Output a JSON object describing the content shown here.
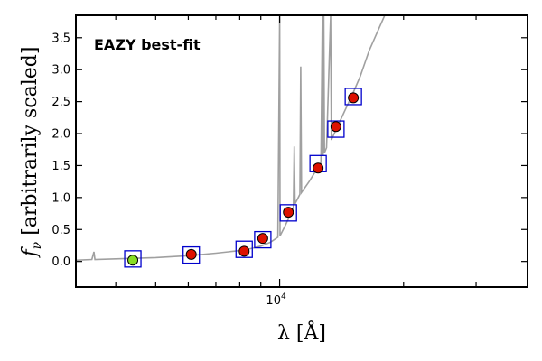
{
  "chart_data": {
    "type": "scatter",
    "title": "",
    "annotation": "EAZY best-fit",
    "annotation_color": "#ff0000",
    "xlabel": "λ [Å]",
    "ylabel_prefix": "f",
    "ylabel_subscript": "ν",
    "ylabel_suffix": " [arbitrarily scaled]",
    "x_scale": "log",
    "xlim": [
      3200,
      40000
    ],
    "ylim": [
      -0.4,
      3.85
    ],
    "x_ticks": [
      {
        "value": 10000,
        "base": "10",
        "exponent": "4"
      }
    ],
    "y_ticks": [
      {
        "value": 0.0,
        "label": "0.0"
      },
      {
        "value": 0.5,
        "label": "0.5"
      },
      {
        "value": 1.0,
        "label": "1.0"
      },
      {
        "value": 1.5,
        "label": "1.5"
      },
      {
        "value": 2.0,
        "label": "2.0"
      },
      {
        "value": 2.5,
        "label": "2.5"
      },
      {
        "value": 3.0,
        "label": "3.0"
      },
      {
        "value": 3.5,
        "label": "3.5"
      }
    ],
    "grid": false,
    "colors": {
      "model": "#a0a0a0",
      "model_flux_box": "#0000cc",
      "observed": "#dd1100",
      "observed_highlight": "#88dd22",
      "marker_edge": "#000000"
    },
    "model_fluxes": [
      {
        "x": 4400,
        "y": 0.04
      },
      {
        "x": 6100,
        "y": 0.1
      },
      {
        "x": 8200,
        "y": 0.19
      },
      {
        "x": 9100,
        "y": 0.34
      },
      {
        "x": 10500,
        "y": 0.76
      },
      {
        "x": 12400,
        "y": 1.53
      },
      {
        "x": 13700,
        "y": 2.07
      },
      {
        "x": 15100,
        "y": 2.58
      }
    ],
    "observed": [
      {
        "x": 4400,
        "y": 0.02,
        "highlight": true
      },
      {
        "x": 6100,
        "y": 0.11,
        "highlight": false
      },
      {
        "x": 8200,
        "y": 0.16,
        "highlight": false
      },
      {
        "x": 9100,
        "y": 0.36,
        "highlight": false
      },
      {
        "x": 10500,
        "y": 0.77,
        "highlight": false
      },
      {
        "x": 12400,
        "y": 1.46,
        "highlight": false
      },
      {
        "x": 13700,
        "y": 2.11,
        "highlight": false
      },
      {
        "x": 15100,
        "y": 2.56,
        "highlight": false
      }
    ],
    "model_spectrum": [
      [
        3200,
        0.02
      ],
      [
        3500,
        0.03
      ],
      [
        3540,
        0.15
      ],
      [
        3560,
        0.03
      ],
      [
        4000,
        0.04
      ],
      [
        5000,
        0.06
      ],
      [
        6000,
        0.09
      ],
      [
        7000,
        0.13
      ],
      [
        8000,
        0.17
      ],
      [
        8500,
        0.2
      ],
      [
        9000,
        0.24
      ],
      [
        9500,
        0.3
      ],
      [
        9900,
        0.38
      ],
      [
        10000,
        3.85
      ],
      [
        10020,
        0.4
      ],
      [
        10300,
        0.55
      ],
      [
        10700,
        0.78
      ],
      [
        10800,
        0.85
      ],
      [
        10850,
        1.8
      ],
      [
        10900,
        0.9
      ],
      [
        11200,
        1.05
      ],
      [
        11250,
        3.05
      ],
      [
        11300,
        1.08
      ],
      [
        11800,
        1.25
      ],
      [
        12200,
        1.4
      ],
      [
        12600,
        1.55
      ],
      [
        12700,
        3.85
      ],
      [
        12750,
        1.65
      ],
      [
        12800,
        3.85
      ],
      [
        12850,
        1.7
      ],
      [
        13000,
        1.78
      ],
      [
        13300,
        3.85
      ],
      [
        13350,
        1.9
      ],
      [
        13800,
        2.1
      ],
      [
        14500,
        2.4
      ],
      [
        15000,
        2.6
      ],
      [
        15700,
        2.9
      ],
      [
        16500,
        3.3
      ],
      [
        17300,
        3.6
      ],
      [
        18000,
        3.85
      ]
    ]
  }
}
